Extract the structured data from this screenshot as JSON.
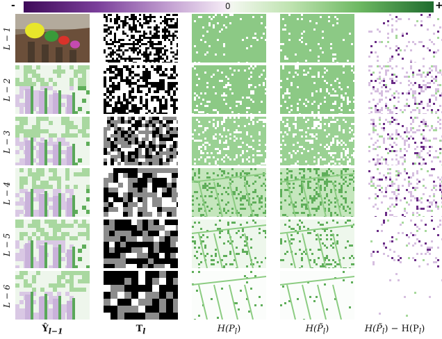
{
  "colorbar": {
    "min_label": "-",
    "mid_label": "0",
    "max_label": "+",
    "negative_color": "#3f0b59",
    "neutral_color": "#f7f7f7",
    "positive_color": "#1f6b2e"
  },
  "rows": [
    {
      "label": "L − 1"
    },
    {
      "label": "L − 2"
    },
    {
      "label": "L − 3"
    },
    {
      "label": "L − 4"
    },
    {
      "label": "L − 5"
    },
    {
      "label": "L − 6"
    }
  ],
  "columns": [
    {
      "label": "Ŷ",
      "sub": "l−1"
    },
    {
      "label": "T",
      "sub": "l"
    },
    {
      "label": "H(P",
      "sub": "l",
      "tail": ")"
    },
    {
      "label": "H(P̃",
      "sub": "l",
      "tail": ")"
    },
    {
      "label": "H(P̃",
      "sub": "l",
      "tail": ") − H(P",
      "sub2": "l",
      "tail2": ")"
    }
  ],
  "colors": {
    "green_strong": "#5fae5a",
    "green_mid": "#8ccc82",
    "green_light": "#d6eecf",
    "purple_strong": "#6a2c86",
    "purple_light": "#d6bfe0",
    "gray_mask": "#8c8c8c"
  }
}
